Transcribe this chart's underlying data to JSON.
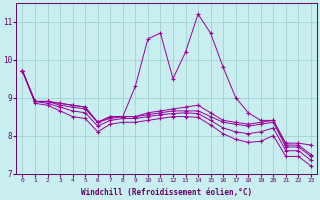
{
  "xlabel": "Windchill (Refroidissement éolien,°C)",
  "background_color": "#c8eef0",
  "line_color": "#990099",
  "grid_color": "#99cccc",
  "text_color": "#660066",
  "xlim": [
    -0.5,
    23.5
  ],
  "ylim": [
    7,
    11.5
  ],
  "yticks": [
    7,
    8,
    9,
    10,
    11
  ],
  "xticks": [
    0,
    1,
    2,
    3,
    4,
    5,
    6,
    7,
    8,
    9,
    10,
    11,
    12,
    13,
    14,
    15,
    16,
    17,
    18,
    19,
    20,
    21,
    22,
    23
  ],
  "series": [
    [
      9.7,
      8.9,
      8.9,
      8.85,
      8.8,
      8.75,
      8.35,
      8.5,
      8.5,
      9.3,
      10.55,
      10.7,
      9.5,
      10.2,
      11.2,
      10.7,
      9.8,
      9.0,
      8.6,
      8.4,
      8.4,
      7.8,
      7.8,
      7.75
    ],
    [
      9.7,
      8.9,
      8.9,
      8.85,
      8.8,
      8.75,
      8.35,
      8.5,
      8.5,
      8.5,
      8.6,
      8.65,
      8.7,
      8.75,
      8.8,
      8.6,
      8.4,
      8.35,
      8.3,
      8.35,
      8.4,
      7.75,
      7.75,
      7.5
    ],
    [
      9.7,
      8.9,
      8.9,
      8.8,
      8.75,
      8.7,
      8.35,
      8.45,
      8.5,
      8.5,
      8.55,
      8.6,
      8.65,
      8.65,
      8.65,
      8.5,
      8.35,
      8.3,
      8.25,
      8.3,
      8.35,
      7.7,
      7.7,
      7.45
    ],
    [
      9.7,
      8.9,
      8.85,
      8.75,
      8.65,
      8.6,
      8.25,
      8.4,
      8.45,
      8.45,
      8.5,
      8.55,
      8.58,
      8.6,
      8.58,
      8.4,
      8.2,
      8.1,
      8.05,
      8.1,
      8.2,
      7.6,
      7.6,
      7.35
    ],
    [
      9.7,
      8.85,
      8.8,
      8.65,
      8.5,
      8.45,
      8.1,
      8.3,
      8.35,
      8.35,
      8.4,
      8.45,
      8.5,
      8.5,
      8.48,
      8.28,
      8.05,
      7.9,
      7.82,
      7.85,
      8.0,
      7.45,
      7.45,
      7.2
    ]
  ]
}
